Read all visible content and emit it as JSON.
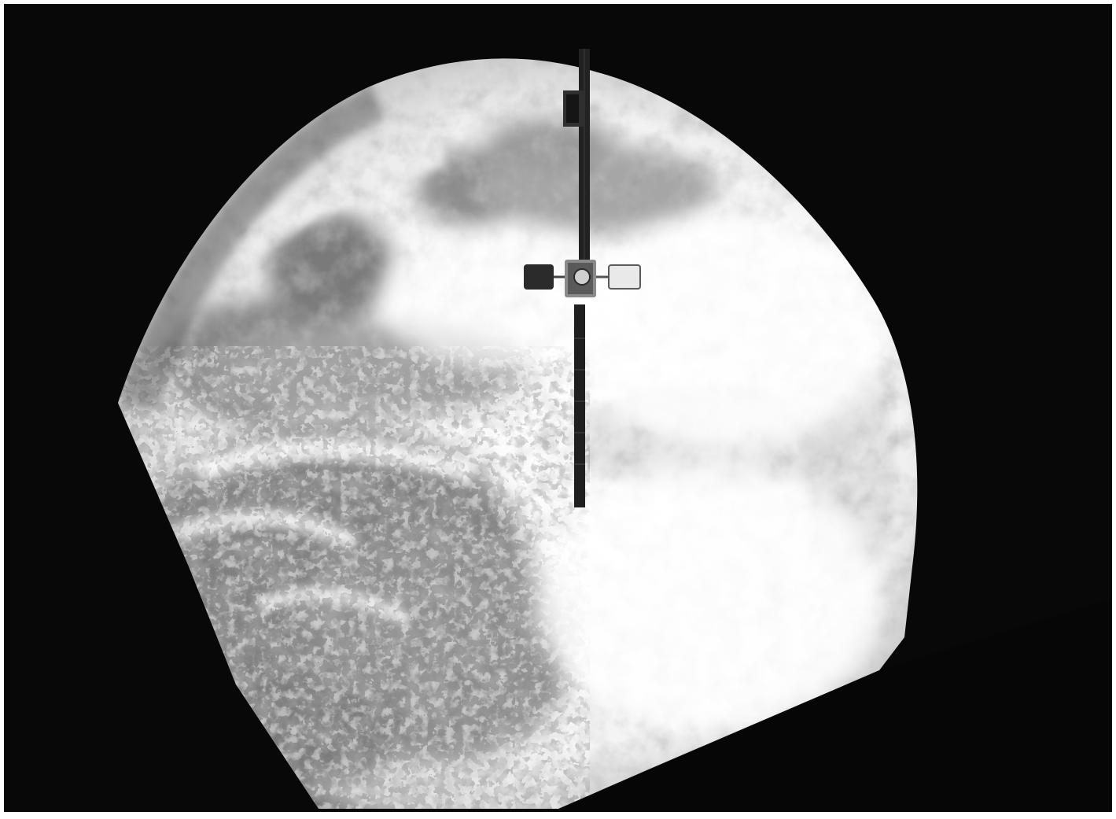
{
  "image": {
    "subject": "earth",
    "foreground_object": "satellite",
    "palette": {
      "frame": "#ffffff",
      "space": "#050505",
      "cloud_bright": "#fbfbfb",
      "cloud_mid": "#d8d8d8",
      "land_dark": "#8a8a8a",
      "ocean_dark": "#6e6e6e",
      "satellite_body": "#2a2a2a",
      "satellite_panel": "#1c1c1c"
    },
    "icons": [
      "earth-disk",
      "satellite-icon",
      "solar-array-icon",
      "antenna-dish-icon"
    ]
  }
}
